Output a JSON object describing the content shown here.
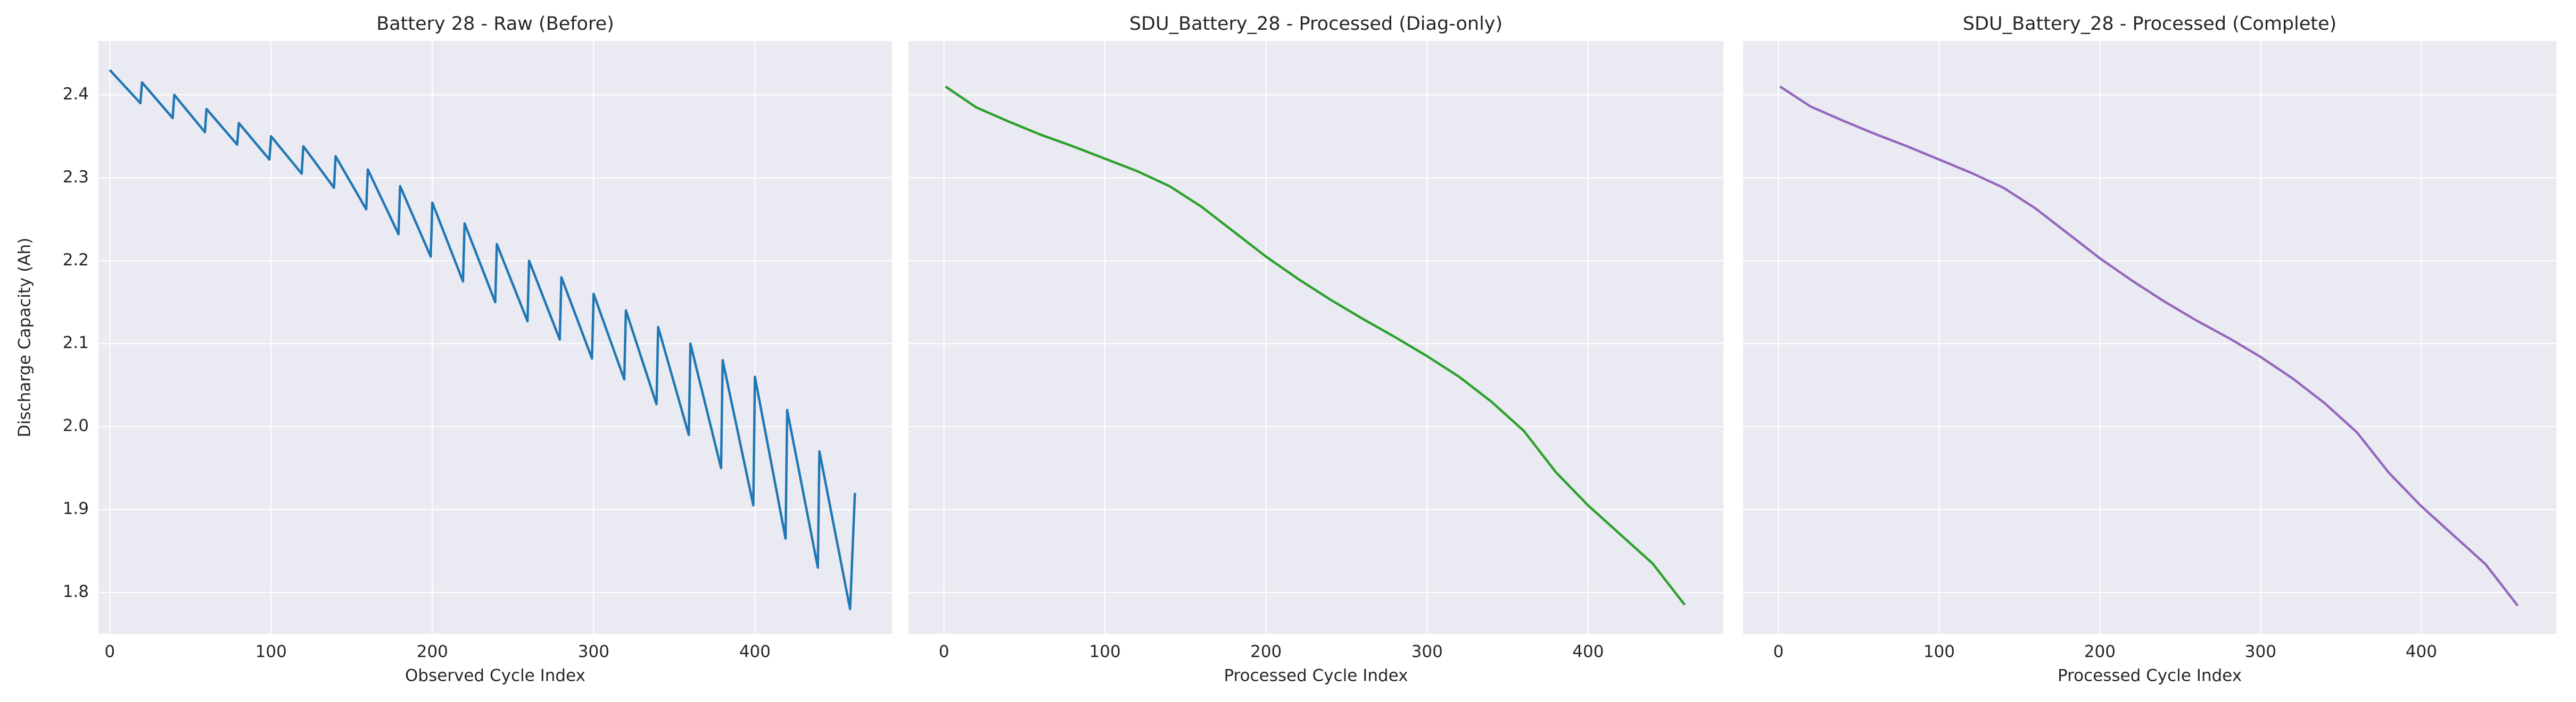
{
  "chart_data": [
    {
      "type": "line",
      "title": "Battery 28 - Raw (Before)",
      "xlabel": "Observed Cycle Index",
      "ylabel": "Discharge Capacity (Ah)",
      "color": "#1f77b4",
      "grid": true,
      "ytick_labels": true,
      "x": [
        0,
        19,
        20,
        39,
        40,
        59,
        60,
        79,
        80,
        99,
        100,
        119,
        120,
        139,
        140,
        159,
        160,
        179,
        180,
        199,
        200,
        219,
        220,
        239,
        240,
        259,
        260,
        279,
        280,
        299,
        300,
        319,
        320,
        339,
        340,
        359,
        360,
        379,
        380,
        399,
        400,
        419,
        420,
        439,
        440,
        459,
        462
      ],
      "values": [
        2.43,
        2.39,
        2.415,
        2.372,
        2.4,
        2.355,
        2.383,
        2.34,
        2.366,
        2.322,
        2.35,
        2.305,
        2.338,
        2.288,
        2.326,
        2.262,
        2.31,
        2.232,
        2.29,
        2.205,
        2.27,
        2.175,
        2.245,
        2.15,
        2.22,
        2.127,
        2.2,
        2.105,
        2.18,
        2.082,
        2.16,
        2.057,
        2.14,
        2.027,
        2.12,
        1.99,
        2.1,
        1.95,
        2.08,
        1.905,
        2.06,
        1.865,
        2.02,
        1.83,
        1.97,
        1.78,
        1.92
      ],
      "xlim": [
        -7,
        485
      ],
      "xticks": [
        0,
        100,
        200,
        300,
        400
      ],
      "ylim": [
        1.75,
        2.465
      ],
      "yticks": [
        1.8,
        1.9,
        {
          "value": 2,
          "label": "2.0"
        },
        2.1,
        2.2,
        2.3,
        2.4
      ]
    },
    {
      "type": "line",
      "title": "SDU_Battery_28 - Processed (Diag-only)",
      "xlabel": "Processed Cycle Index",
      "color": "#2ca02c",
      "grid": true,
      "ytick_labels": false,
      "x": [
        1,
        20,
        40,
        60,
        80,
        100,
        120,
        140,
        160,
        180,
        200,
        220,
        240,
        260,
        280,
        300,
        320,
        340,
        360,
        380,
        400,
        420,
        440,
        460
      ],
      "values": [
        2.41,
        2.385,
        2.368,
        2.352,
        2.338,
        2.323,
        2.308,
        2.29,
        2.265,
        2.235,
        2.205,
        2.178,
        2.153,
        2.13,
        2.108,
        2.085,
        2.06,
        2.03,
        1.995,
        1.945,
        1.905,
        1.87,
        1.835,
        1.785
      ],
      "xlim": [
        -22,
        484
      ],
      "xticks": [
        0,
        100,
        200,
        300,
        400
      ],
      "ylim": [
        1.75,
        2.465
      ],
      "yticks": [
        1.8,
        1.9,
        2,
        2.1,
        2.2,
        2.3,
        2.4
      ]
    },
    {
      "type": "line",
      "title": "SDU_Battery_28 - Processed (Complete)",
      "xlabel": "Processed Cycle Index",
      "color": "#9467bd",
      "grid": true,
      "ytick_labels": false,
      "x": [
        1,
        20,
        40,
        60,
        80,
        100,
        120,
        140,
        160,
        180,
        200,
        220,
        240,
        260,
        280,
        300,
        320,
        340,
        360,
        380,
        400,
        420,
        440,
        460
      ],
      "values": [
        2.41,
        2.386,
        2.369,
        2.353,
        2.338,
        2.322,
        2.306,
        2.288,
        2.263,
        2.233,
        2.203,
        2.176,
        2.151,
        2.128,
        2.107,
        2.084,
        2.058,
        2.028,
        1.993,
        1.944,
        1.904,
        1.869,
        1.834,
        1.784
      ],
      "xlim": [
        -22,
        484
      ],
      "xticks": [
        0,
        100,
        200,
        300,
        400
      ],
      "ylim": [
        1.75,
        2.465
      ],
      "yticks": [
        1.8,
        1.9,
        2,
        2.1,
        2.2,
        2.3,
        2.4
      ]
    }
  ]
}
